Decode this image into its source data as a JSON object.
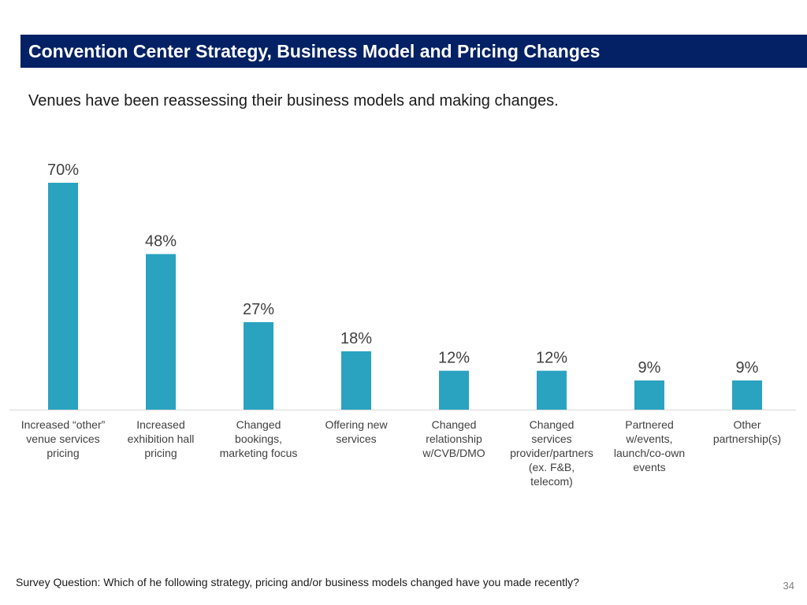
{
  "header": {
    "title": "Convention Center Strategy, Business Model and Pricing Changes",
    "subtitle": "Venues have been reassessing their business models and making changes."
  },
  "chart_data": {
    "type": "bar",
    "title": "",
    "xlabel": "",
    "ylabel": "",
    "ylim": [
      0,
      70
    ],
    "grid": false,
    "legend": "none",
    "bar_color": "#2aa3c1",
    "categories": [
      "Increased “other” venue services pricing",
      "Increased exhibition hall pricing",
      "Changed bookings, marketing focus",
      "Offering new services",
      "Changed relationship w/CVB/DMO",
      "Changed services provider/partners (ex. F&B, telecom)",
      "Partnered w/events, launch/co-own events",
      "Other partnership(s)"
    ],
    "category_lines": [
      [
        "Increased “other”",
        "venue services",
        "pricing"
      ],
      [
        "Increased",
        "exhibition hall",
        "pricing"
      ],
      [
        "Changed",
        "bookings,",
        "marketing focus"
      ],
      [
        "Offering new",
        "services"
      ],
      [
        "Changed",
        "relationship",
        "w/CVB/DMO"
      ],
      [
        "Changed",
        "services",
        "provider/partners",
        "(ex. F&B,",
        "telecom)"
      ],
      [
        "Partnered",
        "w/events,",
        "launch/co-own",
        "events"
      ],
      [
        "Other",
        "partnership(s)"
      ]
    ],
    "values": [
      70,
      48,
      27,
      18,
      12,
      12,
      9,
      9
    ],
    "value_labels": [
      "70%",
      "48%",
      "27%",
      "18%",
      "12%",
      "12%",
      "9%",
      "9%"
    ]
  },
  "footer": {
    "note": "Survey Question: Which of he following strategy, pricing and/or business models changed have you made recently?",
    "page_number": "34"
  }
}
